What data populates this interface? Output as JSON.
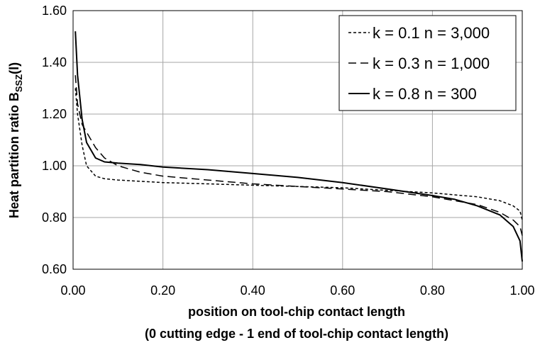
{
  "chart_data": {
    "type": "line",
    "title": "",
    "xlabel": "position on tool-chip contact length",
    "xlabel2": "(0 cutting edge - 1 end of tool-chip contact length)",
    "ylabel_main": "Heat partition ratio B",
    "ylabel_sub": "SSZ",
    "ylabel_tail": "(l)",
    "xlim": [
      0,
      1
    ],
    "ylim": [
      0.6,
      1.6
    ],
    "xticks": [
      "0.00",
      "0.20",
      "0.40",
      "0.60",
      "0.80",
      "1.00"
    ],
    "yticks": [
      "0.60",
      "0.80",
      "1.00",
      "1.20",
      "1.40",
      "1.60"
    ],
    "grid": true,
    "legend_position": "top-right",
    "series": [
      {
        "name": "k = 0.1 n = 3,000",
        "dash": "short-dash",
        "x": [
          0.005,
          0.01,
          0.02,
          0.03,
          0.05,
          0.07,
          0.1,
          0.15,
          0.2,
          0.3,
          0.4,
          0.5,
          0.6,
          0.7,
          0.8,
          0.9,
          0.95,
          0.98,
          0.995,
          1.0
        ],
        "y": [
          1.3,
          1.2,
          1.08,
          1.0,
          0.96,
          0.95,
          0.945,
          0.94,
          0.935,
          0.93,
          0.925,
          0.92,
          0.915,
          0.905,
          0.895,
          0.88,
          0.865,
          0.845,
          0.825,
          0.79
        ]
      },
      {
        "name": "k = 0.3 n = 1,000",
        "dash": "long-dash",
        "x": [
          0.005,
          0.01,
          0.02,
          0.03,
          0.05,
          0.07,
          0.1,
          0.15,
          0.2,
          0.3,
          0.4,
          0.5,
          0.6,
          0.7,
          0.8,
          0.9,
          0.95,
          0.98,
          0.995,
          1.0
        ],
        "y": [
          1.35,
          1.24,
          1.16,
          1.13,
          1.07,
          1.03,
          1.0,
          0.975,
          0.96,
          0.945,
          0.93,
          0.92,
          0.91,
          0.9,
          0.88,
          0.85,
          0.82,
          0.79,
          0.765,
          0.73
        ]
      },
      {
        "name": "k = 0.8 n = 300",
        "dash": "solid",
        "x": [
          0.005,
          0.01,
          0.02,
          0.03,
          0.05,
          0.07,
          0.1,
          0.15,
          0.2,
          0.3,
          0.4,
          0.5,
          0.6,
          0.7,
          0.8,
          0.85,
          0.9,
          0.95,
          0.98,
          0.995,
          1.0
        ],
        "y": [
          1.52,
          1.35,
          1.18,
          1.09,
          1.03,
          1.015,
          1.01,
          1.005,
          0.995,
          0.985,
          0.97,
          0.955,
          0.935,
          0.91,
          0.885,
          0.87,
          0.845,
          0.81,
          0.765,
          0.71,
          0.63
        ]
      }
    ]
  }
}
